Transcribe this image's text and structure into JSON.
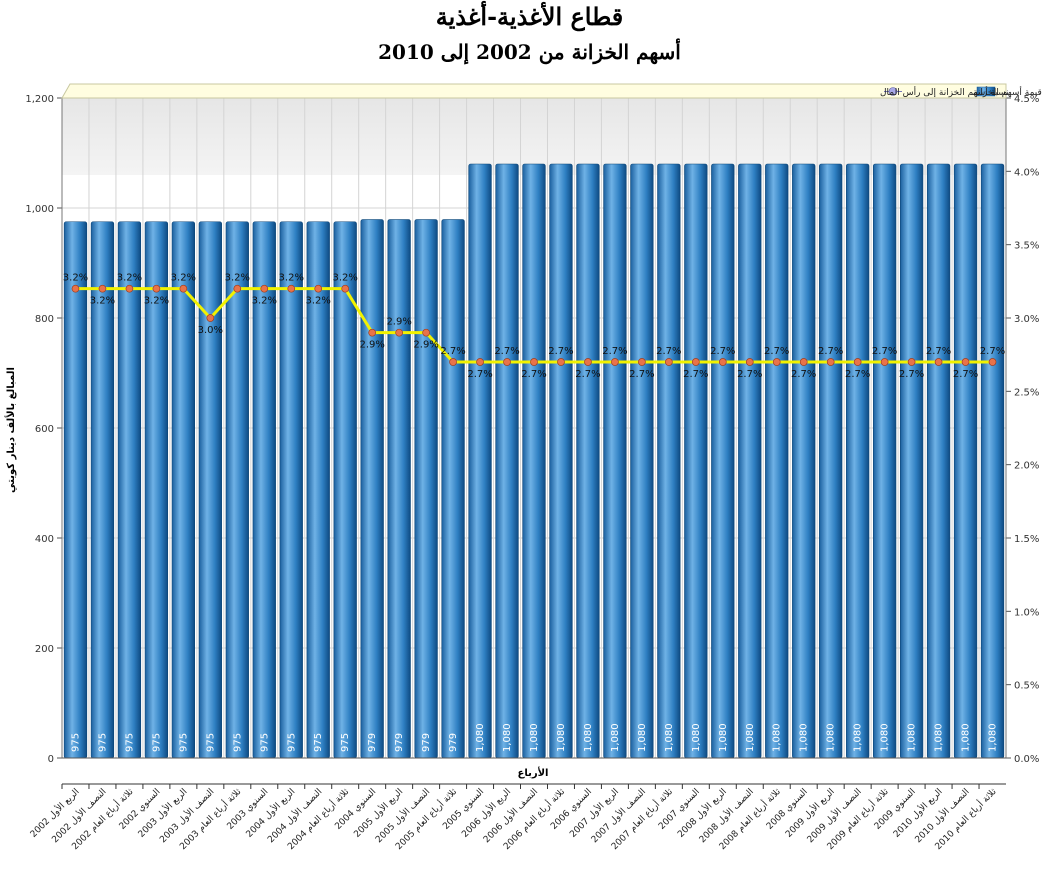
{
  "header": {
    "title": "قطاع الأغذية-أغذية",
    "subtitle": "أسهم الخزانة من 2002 إلى 2010"
  },
  "chart_data": {
    "type": "bar",
    "title": "قطاع الأغذية-أغذية",
    "subtitle": "أسهم الخزانة من 2002 إلى 2010",
    "xlabel": "الأرباع",
    "ylabel": "المبالغ بالألف دينار كويتي",
    "ylim": [
      0,
      1200
    ],
    "y2lim": [
      0,
      4.5
    ],
    "yticks": [
      "0",
      "200",
      "400",
      "600",
      "800",
      "1,000",
      "1,200"
    ],
    "y2ticks": [
      "0.0%",
      "0.5%",
      "1.0%",
      "1.5%",
      "2.0%",
      "2.5%",
      "3.0%",
      "3.5%",
      "4.0%",
      "4.5%"
    ],
    "grid": true,
    "legend_position": "top",
    "categories": [
      "الربع الأول 2002",
      "النصف الأول 2002",
      "ثلاثة أرباع العام 2002",
      "السنوي 2002",
      "الربع الأول 2003",
      "النصف الأول 2003",
      "ثلاثة أرباع العام 2003",
      "السنوي 2003",
      "الربع الأول 2004",
      "النصف الأول 2004",
      "ثلاثة أرباع العام 2004",
      "السنوي 2004",
      "الربع الأول 2005",
      "النصف الأول 2005",
      "ثلاثة أرباع العام 2005",
      "السنوي 2005",
      "الربع الأول 2006",
      "النصف الأول 2006",
      "ثلاثة أرباع العام 2006",
      "السنوي 2006",
      "الربع الأول 2007",
      "النصف الأول 2007",
      "ثلاثة أرباع العام 2007",
      "السنوي 2007",
      "الربع الأول 2008",
      "النصف الأول 2008",
      "ثلاثة أرباع العام 2008",
      "السنوي 2008",
      "الربع الأول 2009",
      "النصف الأول 2009",
      "ثلاثة أرباع العام 2009",
      "السنوي 2009",
      "الربع الأول 2010",
      "النصف الأول 2010",
      "ثلاثة أرباع العام 2010"
    ],
    "series": [
      {
        "name": "قيمة أسهم الخزانة",
        "type": "bar",
        "axis": "left",
        "color": "#2f7fc0",
        "values": [
          975,
          975,
          975,
          975,
          975,
          975,
          975,
          975,
          975,
          975,
          975,
          979,
          979,
          979,
          979,
          1080,
          1080,
          1080,
          1080,
          1080,
          1080,
          1080,
          1080,
          1080,
          1080,
          1080,
          1080,
          1080,
          1080,
          1080,
          1080,
          1080,
          1080,
          1080,
          1080
        ],
        "labels": [
          "975",
          "975",
          "975",
          "975",
          "975",
          "975",
          "975",
          "975",
          "975",
          "975",
          "975",
          "979",
          "979",
          "979",
          "979",
          "1,080",
          "1,080",
          "1,080",
          "1,080",
          "1,080",
          "1,080",
          "1,080",
          "1,080",
          "1,080",
          "1,080",
          "1,080",
          "1,080",
          "1,080",
          "1,080",
          "1,080",
          "1,080",
          "1,080",
          "1,080",
          "1,080",
          "1,080"
        ]
      },
      {
        "name": "نسبة أسهم الخزانة إلى رأس المال",
        "type": "line",
        "axis": "right",
        "color": "#f2f200",
        "marker_color": "#e8734a",
        "values": [
          3.2,
          3.2,
          3.2,
          3.2,
          3.2,
          3.0,
          3.2,
          3.2,
          3.2,
          3.2,
          3.2,
          2.9,
          2.9,
          2.9,
          2.7,
          2.7,
          2.7,
          2.7,
          2.7,
          2.7,
          2.7,
          2.7,
          2.7,
          2.7,
          2.7,
          2.7,
          2.7,
          2.7,
          2.7,
          2.7,
          2.7,
          2.7,
          2.7,
          2.7,
          2.7
        ],
        "labels": [
          "3.2%",
          "3.2%",
          "3.2%",
          "3.2%",
          "3.2%",
          "3.0%",
          "3.2%",
          "3.2%",
          "3.2%",
          "3.2%",
          "3.2%",
          "2.9%",
          "2.9%",
          "2.9%",
          "2.7%",
          "2.7%",
          "2.7%",
          "2.7%",
          "2.7%",
          "2.7%",
          "2.7%",
          "2.7%",
          "2.7%",
          "2.7%",
          "2.7%",
          "2.7%",
          "2.7%",
          "2.7%",
          "2.7%",
          "2.7%",
          "2.7%",
          "2.7%",
          "2.7%",
          "2.7%",
          "2.7%"
        ]
      }
    ]
  }
}
